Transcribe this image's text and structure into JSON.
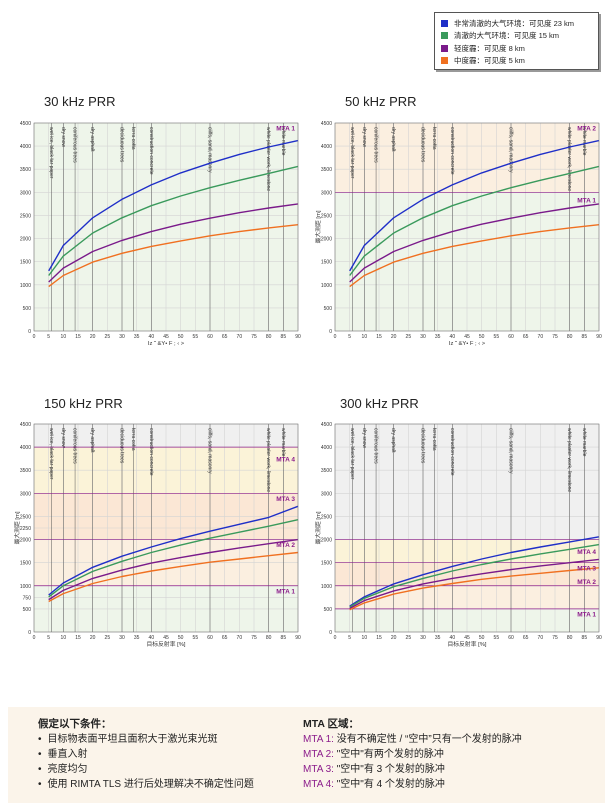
{
  "legend": {
    "items": [
      {
        "label": "非常清澈的大气环境：可见度 23 km",
        "color": "#1f2fc8"
      },
      {
        "label": "清澈的大气环境：可见度 15 km",
        "color": "#3a9a5c"
      },
      {
        "label": "轻度霾：可见度 8 km",
        "color": "#7a1a8a"
      },
      {
        "label": "中度霾：可见度 5 km",
        "color": "#f07020"
      }
    ]
  },
  "colors": {
    "curve_23km": "#1f2fc8",
    "curve_15km": "#3a9a5c",
    "curve_8km": "#7a1a8a",
    "curve_5km": "#f07020",
    "mta_label": "#8b1c8b",
    "zone_mta1": "#eef5ea",
    "zone_mta2": "#fbefe0",
    "zone_mta3": "#fbe7d5",
    "zone_mta4": "#fbf3d8",
    "plot_bg": "#f0f0f0"
  },
  "chart_data": [
    {
      "type": "line",
      "title": "30 kHz PRR",
      "xlabel": "Iz ˜ &Y• F ; ‹ >",
      "ylabel": "",
      "xlim": [
        0,
        90
      ],
      "ylim": [
        0,
        4500
      ],
      "xticks": [
        0,
        5,
        10,
        15,
        20,
        25,
        30,
        35,
        40,
        45,
        50,
        55,
        60,
        65,
        70,
        75,
        80,
        85,
        90
      ],
      "yticks": [
        0,
        500,
        1000,
        1500,
        2000,
        2500,
        3000,
        3500,
        4000,
        4500
      ],
      "mta_lines": [],
      "mta_labels": [
        {
          "label": "MTA 1",
          "y": 4400
        }
      ],
      "zones": [
        {
          "name": "MTA 1",
          "from": 0,
          "to": 4500
        }
      ],
      "series": [
        {
          "name": "非常清澈的大气环境：可见度 23 km",
          "x": [
            5,
            10,
            20,
            30,
            40,
            50,
            60,
            70,
            80,
            90
          ],
          "y": [
            1300,
            1850,
            2450,
            2850,
            3160,
            3420,
            3630,
            3820,
            3980,
            4120
          ]
        },
        {
          "name": "清澈的大气环境：可见度 15 km",
          "x": [
            5,
            10,
            20,
            30,
            40,
            50,
            60,
            70,
            80,
            90
          ],
          "y": [
            1200,
            1620,
            2120,
            2450,
            2710,
            2920,
            3100,
            3260,
            3410,
            3560
          ]
        },
        {
          "name": "轻度霾：可见度 8 km",
          "x": [
            5,
            10,
            20,
            30,
            40,
            50,
            60,
            70,
            80,
            90
          ],
          "y": [
            1060,
            1360,
            1720,
            1960,
            2150,
            2310,
            2440,
            2560,
            2660,
            2750
          ]
        },
        {
          "name": "中度霾：可见度 5 km",
          "x": [
            5,
            10,
            20,
            30,
            40,
            50,
            60,
            70,
            80,
            90
          ],
          "y": [
            960,
            1200,
            1490,
            1680,
            1830,
            1950,
            2060,
            2150,
            2230,
            2300
          ]
        }
      ],
      "annotations": [
        {
          "label": "wet ice, black tar paper",
          "x": 6
        },
        {
          "label": "dry snow",
          "x": 10
        },
        {
          "label": "coniferous trees",
          "x": 14
        },
        {
          "label": "dry asphalt",
          "x": 20
        },
        {
          "label": "deciduous trees",
          "x": 30
        },
        {
          "label": "terra cotta",
          "x": 34
        },
        {
          "label": "construction concrete",
          "x": 40
        },
        {
          "label": "cliffs, sand, masonry",
          "x": 60
        },
        {
          "label": "white plaster work, limestone",
          "x": 80
        },
        {
          "label": "white marble",
          "x": 85
        }
      ]
    },
    {
      "type": "line",
      "title": "50 kHz PRR",
      "xlabel": "Iz ˜ &Y• F ; ‹ >",
      "ylabel": "最大测距 [m]",
      "xlim": [
        0,
        90
      ],
      "ylim": [
        0,
        4500
      ],
      "xticks": [
        0,
        5,
        10,
        15,
        20,
        25,
        30,
        35,
        40,
        45,
        50,
        55,
        60,
        65,
        70,
        75,
        80,
        85,
        90
      ],
      "yticks": [
        0,
        500,
        1000,
        1500,
        2000,
        2500,
        3000,
        3500,
        4000,
        4500
      ],
      "mta_lines": [
        3000
      ],
      "mta_labels": [
        {
          "label": "MTA 2",
          "y": 4400
        },
        {
          "label": "MTA 1",
          "y": 2850
        }
      ],
      "zones": [
        {
          "name": "MTA 1",
          "from": 0,
          "to": 3000
        },
        {
          "name": "MTA 2",
          "from": 3000,
          "to": 4500
        }
      ],
      "series": [
        {
          "name": "非常清澈的大气环境：可见度 23 km",
          "x": [
            5,
            10,
            20,
            30,
            40,
            50,
            60,
            70,
            80,
            90
          ],
          "y": [
            1300,
            1850,
            2450,
            2850,
            3160,
            3420,
            3630,
            3820,
            3980,
            4120
          ]
        },
        {
          "name": "清澈的大气环境：可见度 15 km",
          "x": [
            5,
            10,
            20,
            30,
            40,
            50,
            60,
            70,
            80,
            90
          ],
          "y": [
            1200,
            1620,
            2120,
            2450,
            2710,
            2920,
            3100,
            3260,
            3410,
            3560
          ]
        },
        {
          "name": "轻度霾：可见度 8 km",
          "x": [
            5,
            10,
            20,
            30,
            40,
            50,
            60,
            70,
            80,
            90
          ],
          "y": [
            1060,
            1360,
            1720,
            1960,
            2150,
            2310,
            2440,
            2560,
            2660,
            2750
          ]
        },
        {
          "name": "中度霾：可见度 5 km",
          "x": [
            5,
            10,
            20,
            30,
            40,
            50,
            60,
            70,
            80,
            90
          ],
          "y": [
            960,
            1200,
            1490,
            1680,
            1830,
            1950,
            2060,
            2150,
            2230,
            2300
          ]
        }
      ],
      "annotations": [
        {
          "label": "wet ice, black tar paper",
          "x": 6
        },
        {
          "label": "dry snow",
          "x": 10
        },
        {
          "label": "coniferous trees",
          "x": 14
        },
        {
          "label": "dry asphalt",
          "x": 20
        },
        {
          "label": "deciduous trees",
          "x": 30
        },
        {
          "label": "terra cotta",
          "x": 34
        },
        {
          "label": "construction concrete",
          "x": 40
        },
        {
          "label": "cliffs, sand, masonry",
          "x": 60
        },
        {
          "label": "white plaster work, limestone",
          "x": 80
        },
        {
          "label": "white marble",
          "x": 85
        }
      ]
    },
    {
      "type": "line",
      "title": "150 kHz PRR",
      "xlabel": "目标反射率 [%]",
      "ylabel": "最大测距 [m]",
      "xlim": [
        0,
        90
      ],
      "ylim": [
        0,
        4500
      ],
      "xticks": [
        0,
        5,
        10,
        15,
        20,
        25,
        30,
        35,
        40,
        45,
        50,
        55,
        60,
        65,
        70,
        75,
        80,
        85,
        90
      ],
      "yticks": [
        0,
        500,
        750,
        1000,
        1500,
        2000,
        2250,
        2500,
        3000,
        3500,
        4000,
        4500
      ],
      "mta_lines": [
        1000,
        2000,
        3000,
        4000
      ],
      "mta_labels": [
        {
          "label": "MTA 4",
          "y": 3750
        },
        {
          "label": "MTA 3",
          "y": 2900
        },
        {
          "label": "MTA 2",
          "y": 1900
        },
        {
          "label": "MTA 1",
          "y": 900
        }
      ],
      "zones": [
        {
          "name": "MTA 1",
          "from": 0,
          "to": 1000
        },
        {
          "name": "MTA 2",
          "from": 1000,
          "to": 2000
        },
        {
          "name": "MTA 3",
          "from": 2000,
          "to": 3000
        },
        {
          "name": "MTA 4",
          "from": 3000,
          "to": 4000
        }
      ],
      "series": [
        {
          "name": "非常清澈的大气环境：可见度 23 km",
          "x": [
            5,
            10,
            20,
            30,
            40,
            50,
            60,
            70,
            80,
            90
          ],
          "y": [
            800,
            1060,
            1400,
            1640,
            1840,
            2020,
            2180,
            2330,
            2480,
            2720
          ]
        },
        {
          "name": "清澈的大气环境：可见度 15 km",
          "x": [
            5,
            10,
            20,
            30,
            40,
            50,
            60,
            70,
            80,
            90
          ],
          "y": [
            760,
            1000,
            1310,
            1530,
            1720,
            1880,
            2030,
            2160,
            2290,
            2430
          ]
        },
        {
          "name": "轻度霾：可见度 8 km",
          "x": [
            5,
            10,
            20,
            30,
            40,
            50,
            60,
            70,
            80,
            90
          ],
          "y": [
            700,
            900,
            1160,
            1340,
            1490,
            1610,
            1720,
            1820,
            1910,
            2000
          ]
        },
        {
          "name": "中度霾：可见度 5 km",
          "x": [
            5,
            10,
            20,
            30,
            40,
            50,
            60,
            70,
            80,
            90
          ],
          "y": [
            660,
            830,
            1050,
            1200,
            1320,
            1420,
            1510,
            1580,
            1650,
            1720
          ]
        }
      ],
      "annotations": [
        {
          "label": "wet ice, black tar paper",
          "x": 6
        },
        {
          "label": "dry snow",
          "x": 10
        },
        {
          "label": "coniferous trees",
          "x": 14
        },
        {
          "label": "dry asphalt",
          "x": 20
        },
        {
          "label": "deciduous trees",
          "x": 30
        },
        {
          "label": "terra cotta",
          "x": 34
        },
        {
          "label": "construction concrete",
          "x": 40
        },
        {
          "label": "cliffs, sand, masonry",
          "x": 60
        },
        {
          "label": "white plaster work, limestone",
          "x": 80
        },
        {
          "label": "white marble",
          "x": 85
        }
      ]
    },
    {
      "type": "line",
      "title": "300 kHz PRR",
      "xlabel": "目标反射率 [%]",
      "ylabel": "最大测距 [m]",
      "xlim": [
        0,
        90
      ],
      "ylim": [
        0,
        4500
      ],
      "xticks": [
        0,
        5,
        10,
        15,
        20,
        25,
        30,
        35,
        40,
        45,
        50,
        55,
        60,
        65,
        70,
        75,
        80,
        85,
        90
      ],
      "yticks": [
        0,
        500,
        1000,
        1500,
        2000,
        2500,
        3000,
        3500,
        4000,
        4500
      ],
      "mta_lines": [
        500,
        1000,
        1500,
        2000
      ],
      "mta_labels": [
        {
          "label": "MTA 4",
          "y": 1750
        },
        {
          "label": "MTA 3",
          "y": 1400
        },
        {
          "label": "MTA 2",
          "y": 1100
        },
        {
          "label": "MTA 1",
          "y": 400
        }
      ],
      "zones": [
        {
          "name": "MTA 1",
          "from": 0,
          "to": 500
        },
        {
          "name": "MTA 2",
          "from": 500,
          "to": 1000
        },
        {
          "name": "MTA 3",
          "from": 1000,
          "to": 1500
        },
        {
          "name": "MTA 4",
          "from": 1500,
          "to": 2000
        }
      ],
      "series": [
        {
          "name": "非常清澈的大气环境：可见度 23 km",
          "x": [
            5,
            10,
            20,
            30,
            40,
            50,
            60,
            70,
            80,
            90
          ],
          "y": [
            560,
            760,
            1040,
            1240,
            1420,
            1580,
            1720,
            1840,
            1950,
            2060
          ]
        },
        {
          "name": "清澈的大气环境：可见度 15 km",
          "x": [
            5,
            10,
            20,
            30,
            40,
            50,
            60,
            70,
            80,
            90
          ],
          "y": [
            540,
            730,
            980,
            1160,
            1320,
            1460,
            1580,
            1690,
            1790,
            1890
          ]
        },
        {
          "name": "轻度霾：可见度 8 km",
          "x": [
            5,
            10,
            20,
            30,
            40,
            50,
            60,
            70,
            80,
            90
          ],
          "y": [
            510,
            680,
            890,
            1040,
            1160,
            1260,
            1350,
            1430,
            1500,
            1570
          ]
        },
        {
          "name": "中度霾：可见度 5 km",
          "x": [
            5,
            10,
            20,
            30,
            40,
            50,
            60,
            70,
            80,
            90
          ],
          "y": [
            480,
            630,
            820,
            950,
            1050,
            1140,
            1210,
            1270,
            1330,
            1390
          ]
        }
      ],
      "annotations": [
        {
          "label": "wet ice, black tar paper",
          "x": 6
        },
        {
          "label": "dry snow",
          "x": 10
        },
        {
          "label": "coniferous trees",
          "x": 14
        },
        {
          "label": "dry asphalt",
          "x": 20
        },
        {
          "label": "deciduous trees",
          "x": 30
        },
        {
          "label": "terra cotta",
          "x": 34
        },
        {
          "label": "construction concrete",
          "x": 40
        },
        {
          "label": "cliffs, sand, masonry",
          "x": 60
        },
        {
          "label": "white plaster work, limestone",
          "x": 80
        },
        {
          "label": "white marble",
          "x": 85
        }
      ]
    }
  ],
  "notes": {
    "assumptions_heading": "假定以下条件：",
    "assumptions": [
      "目标物表面平坦且面积大于激光束光斑",
      "垂直入射",
      "亮度均匀",
      "使用 RIMTA TLS 进行后处理解决不确定性问题"
    ],
    "mta_heading": "MTA 区域：",
    "mta_items": [
      {
        "key": "MTA 1:",
        "text": "没有不确定性 / “空中”只有一个发射的脉冲"
      },
      {
        "key": "MTA 2:",
        "text": "\"空中\"有两个发射的脉冲"
      },
      {
        "key": "MTA 3:",
        "text": "\"空中\"有 3 个发射的脉冲"
      },
      {
        "key": "MTA 4:",
        "text": "\"空中\"有 4 个发射的脉冲"
      }
    ]
  }
}
